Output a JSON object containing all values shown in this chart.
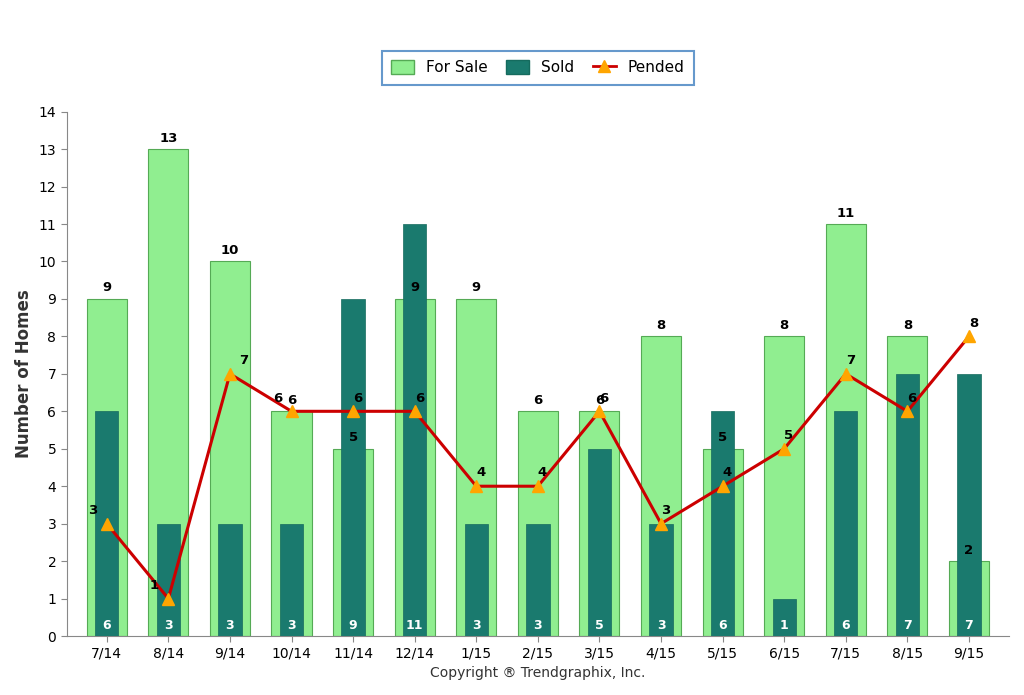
{
  "categories": [
    "7/14",
    "8/14",
    "9/14",
    "10/14",
    "11/14",
    "12/14",
    "1/15",
    "2/15",
    "3/15",
    "4/15",
    "5/15",
    "6/15",
    "7/15",
    "8/15",
    "9/15"
  ],
  "for_sale": [
    9,
    13,
    10,
    6,
    5,
    9,
    9,
    6,
    6,
    8,
    5,
    8,
    11,
    8,
    2
  ],
  "sold": [
    6,
    3,
    3,
    3,
    9,
    11,
    3,
    3,
    5,
    3,
    6,
    1,
    6,
    7,
    7
  ],
  "pended": [
    3,
    1,
    7,
    6,
    6,
    6,
    4,
    4,
    6,
    3,
    4,
    5,
    7,
    6,
    8
  ],
  "for_sale_color": "#90EE90",
  "sold_color": "#1a7a6e",
  "pended_line_color": "#cc0000",
  "pended_marker_color": "#FFA500",
  "ylabel": "Number of Homes",
  "xlabel": "Copyright ® Trendgraphix, Inc.",
  "ylim": [
    0,
    14
  ],
  "yticks": [
    0,
    1,
    2,
    3,
    4,
    5,
    6,
    7,
    8,
    9,
    10,
    11,
    12,
    13,
    14
  ],
  "legend_labels": [
    "For Sale",
    "Sold",
    "Pended"
  ],
  "fs_bar_width": 0.65,
  "sold_bar_width": 0.38,
  "background_color": "#ffffff",
  "plot_bg_color": "#ffffff"
}
